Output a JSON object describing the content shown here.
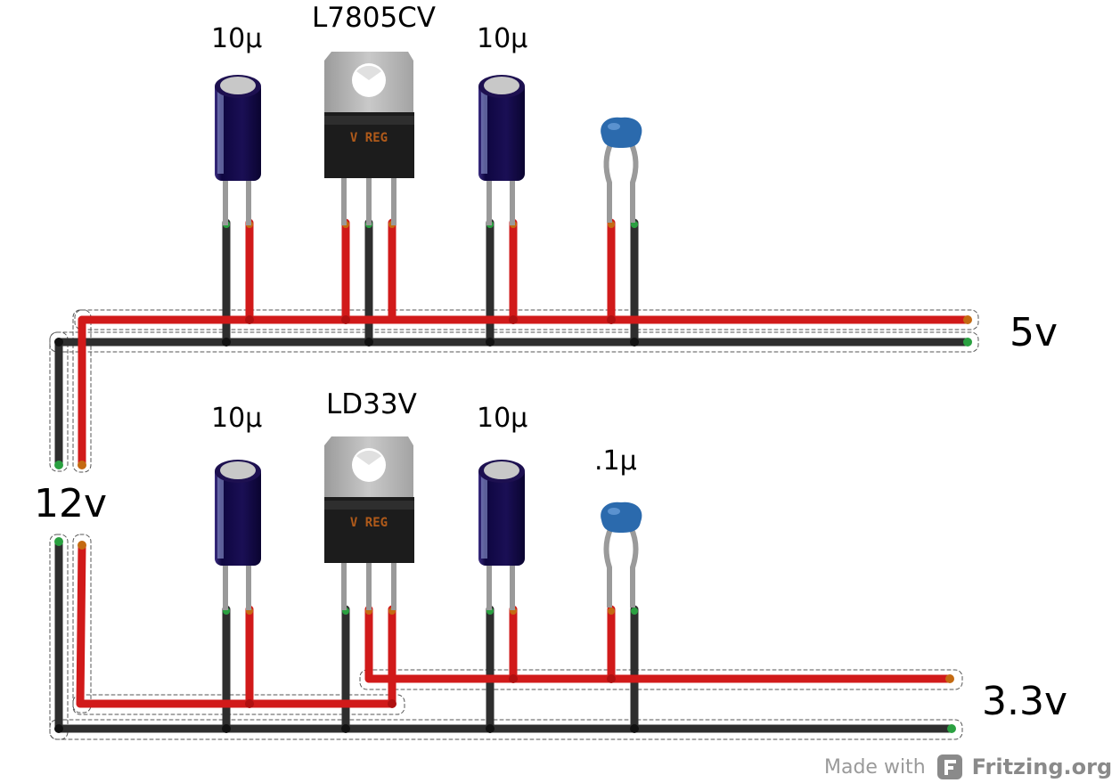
{
  "labels": {
    "reg_top": "L7805CV",
    "reg_bottom": "LD33V",
    "cap_top_left": "10µ",
    "cap_top_right": "10µ",
    "cap_bottom_left": "10µ",
    "cap_bottom_right": "10µ",
    "ceramic_bottom": ".1µ",
    "rail_5v": "5v",
    "rail_3v3": "3.3v",
    "input_12v": "12v",
    "regulator_marking": "V REG"
  },
  "footer": {
    "made_with": "Made with",
    "brand": "Fritzing.org"
  },
  "colors": {
    "positive_wire": "#d11a1a",
    "ground_wire": "#333333",
    "capacitor_body": "#1a0d4d",
    "ceramic_cap": "#2b6aad",
    "regulator_body": "#1c1c1c",
    "regulator_tab": "#b5b5b5",
    "regulator_marking": "#b05a1a"
  }
}
